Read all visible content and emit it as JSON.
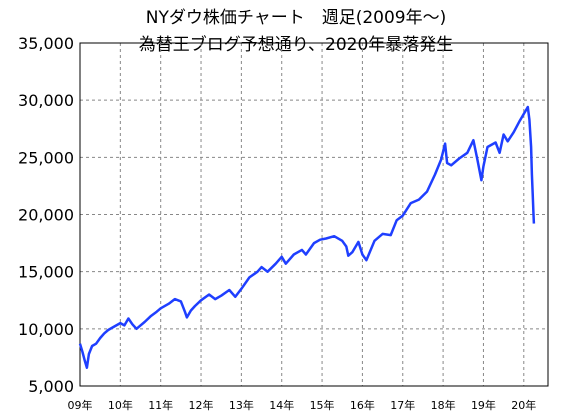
{
  "chart_data": {
    "type": "line",
    "title": "NYダウ株価チャート　週足(2009年～)",
    "subtitle": "為替王ブログ予想通り、2020年暴落発生",
    "xlabel": "",
    "ylabel": "",
    "ylim": [
      5000,
      35000
    ],
    "yticks": [
      "5,000",
      "10,000",
      "15,000",
      "20,000",
      "25,000",
      "30,000",
      "35,000"
    ],
    "ytick_values": [
      5000,
      10000,
      15000,
      20000,
      25000,
      30000,
      35000
    ],
    "xlim": [
      2009.0,
      2020.6
    ],
    "xticks": [
      "09年",
      "10年",
      "11年",
      "12年",
      "13年",
      "14年",
      "15年",
      "16年",
      "17年",
      "18年",
      "19年",
      "20年"
    ],
    "xtick_values": [
      2009,
      2010,
      2011,
      2012,
      2013,
      2014,
      2015,
      2016,
      2017,
      2018,
      2019,
      2020
    ],
    "grid": true,
    "line_color": "#1f3fff",
    "series": [
      {
        "x": [
          2009.0,
          2009.06,
          2009.12,
          2009.17,
          2009.22,
          2009.3,
          2009.4,
          2009.5,
          2009.6,
          2009.7,
          2009.85,
          2010.0,
          2010.1,
          2010.2,
          2010.3,
          2010.4,
          2010.5,
          2010.6,
          2010.75,
          2010.9,
          2011.0,
          2011.2,
          2011.35,
          2011.5,
          2011.6,
          2011.65,
          2011.75,
          2011.85,
          2012.0,
          2012.2,
          2012.35,
          2012.5,
          2012.7,
          2012.85,
          2013.0,
          2013.2,
          2013.4,
          2013.5,
          2013.65,
          2013.85,
          2014.0,
          2014.1,
          2014.3,
          2014.5,
          2014.6,
          2014.8,
          2014.95,
          2015.1,
          2015.3,
          2015.5,
          2015.6,
          2015.65,
          2015.75,
          2015.9,
          2016.0,
          2016.1,
          2016.3,
          2016.5,
          2016.7,
          2016.85,
          2017.0,
          2017.2,
          2017.4,
          2017.6,
          2017.8,
          2017.95,
          2018.05,
          2018.1,
          2018.2,
          2018.4,
          2018.6,
          2018.75,
          2018.85,
          2018.95,
          2019.0,
          2019.1,
          2019.3,
          2019.4,
          2019.5,
          2019.6,
          2019.75,
          2019.9,
          2020.0,
          2020.05,
          2020.1,
          2020.14,
          2020.18,
          2020.2,
          2020.22,
          2020.24,
          2020.25
        ],
        "values": [
          8700,
          8000,
          7200,
          6600,
          7800,
          8500,
          8700,
          9200,
          9600,
          9900,
          10200,
          10500,
          10300,
          10900,
          10400,
          10000,
          10300,
          10600,
          11100,
          11500,
          11800,
          12200,
          12600,
          12400,
          11500,
          11000,
          11600,
          12000,
          12500,
          13000,
          12600,
          12900,
          13400,
          12800,
          13500,
          14500,
          15000,
          15400,
          15000,
          15700,
          16300,
          15700,
          16500,
          16900,
          16500,
          17500,
          17800,
          17900,
          18100,
          17700,
          17200,
          16400,
          16700,
          17600,
          16500,
          16000,
          17700,
          18300,
          18200,
          19500,
          19900,
          21000,
          21300,
          22000,
          23500,
          24800,
          26200,
          24500,
          24300,
          24900,
          25400,
          26500,
          24800,
          23000,
          24200,
          25900,
          26300,
          25400,
          27000,
          26400,
          27200,
          28200,
          28800,
          29100,
          29400,
          28300,
          25900,
          23500,
          21800,
          20000,
          19200
        ]
      }
    ]
  }
}
